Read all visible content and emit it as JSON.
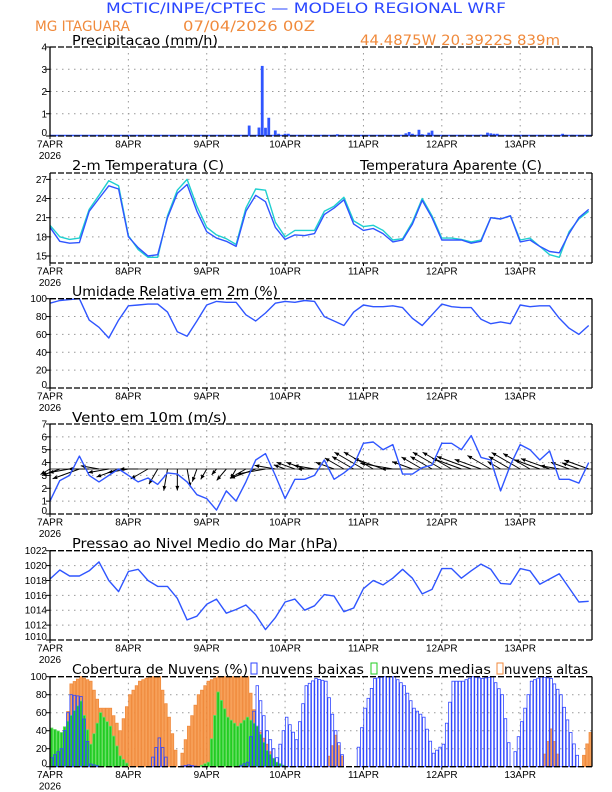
{
  "header": {
    "title": "MCTIC/INPE/CPTEC — MODELO REGIONAL WRF",
    "location": "MG ITAGUARA",
    "run": "07/04/2026 00Z",
    "coords": "44.4875W 20.3922S 839m"
  },
  "colors": {
    "title": "#2a46ff",
    "orange": "#f08a3c",
    "line_blue": "#2f55ff",
    "apparent_cyan": "#1fcfcf",
    "cloud_low": "#2f45ff",
    "cloud_mid": "#22cc22",
    "cloud_high": "#f7a15a"
  },
  "times": [
    "07APR 00Z",
    "07APR 03Z",
    "07APR 06Z",
    "07APR 09Z",
    "07APR 12Z",
    "07APR 15Z",
    "07APR 18Z",
    "07APR 21Z",
    "08APR 00Z",
    "08APR 03Z",
    "08APR 06Z",
    "08APR 09Z",
    "08APR 12Z",
    "08APR 15Z",
    "08APR 18Z",
    "08APR 21Z",
    "09APR 00Z",
    "09APR 03Z",
    "09APR 06Z",
    "09APR 09Z",
    "09APR 12Z",
    "09APR 15Z",
    "09APR 18Z",
    "09APR 21Z",
    "10APR 00Z",
    "10APR 03Z",
    "10APR 06Z",
    "10APR 09Z",
    "10APR 12Z",
    "10APR 15Z",
    "10APR 18Z",
    "10APR 21Z",
    "11APR 00Z",
    "11APR 03Z",
    "11APR 06Z",
    "11APR 09Z",
    "11APR 12Z",
    "11APR 15Z",
    "11APR 18Z",
    "11APR 21Z",
    "12APR 00Z",
    "12APR 03Z",
    "12APR 06Z",
    "12APR 09Z",
    "12APR 12Z",
    "12APR 15Z",
    "12APR 18Z",
    "12APR 21Z",
    "13APR 00Z",
    "13APR 03Z",
    "13APR 06Z",
    "13APR 09Z",
    "13APR 12Z",
    "13APR 15Z",
    "13APR 18Z",
    "13APR 21Z"
  ],
  "x_axis": {
    "tick_labels": [
      "7APR",
      "8APR",
      "9APR",
      "10APR",
      "11APR",
      "12APR",
      "13APR"
    ],
    "year_label": "2026",
    "range": [
      "07APR 00Z",
      "13APR 22Z"
    ]
  },
  "chart_data": [
    {
      "type": "bar",
      "title": "Precipitacao (mm/h)",
      "ylim": [
        0,
        4
      ],
      "yticks": [
        "0",
        "1",
        "2",
        "3",
        "4"
      ],
      "grid": true,
      "events": [
        {
          "t": "09APR 13Z",
          "v": 0.47
        },
        {
          "t": "09APR 16Z",
          "v": 0.38
        },
        {
          "t": "09APR 17Z",
          "v": 3.15
        },
        {
          "t": "09APR 18Z",
          "v": 0.37
        },
        {
          "t": "09APR 19Z",
          "v": 0.82
        },
        {
          "t": "09APR 21Z",
          "v": 0.25
        },
        {
          "t": "09APR 22Z",
          "v": 0.1
        },
        {
          "t": "10APR 00Z",
          "v": 0.1
        },
        {
          "t": "10APR 01Z",
          "v": 0.1
        },
        {
          "t": "10APR 12Z",
          "v": 0.05
        },
        {
          "t": "10APR 15Z",
          "v": 0.05
        },
        {
          "t": "10APR 16Z",
          "v": 0.08
        },
        {
          "t": "11APR 13Z",
          "v": 0.12
        },
        {
          "t": "11APR 14Z",
          "v": 0.18
        },
        {
          "t": "11APR 15Z",
          "v": 0.1
        },
        {
          "t": "11APR 17Z",
          "v": 0.28
        },
        {
          "t": "11APR 18Z",
          "v": 0.08
        },
        {
          "t": "11APR 20Z",
          "v": 0.15
        },
        {
          "t": "11APR 21Z",
          "v": 0.24
        },
        {
          "t": "12APR 12Z",
          "v": 0.06
        },
        {
          "t": "12APR 14Z",
          "v": 0.15
        },
        {
          "t": "12APR 15Z",
          "v": 0.12
        },
        {
          "t": "12APR 16Z",
          "v": 0.1
        },
        {
          "t": "12APR 17Z",
          "v": 0.1
        },
        {
          "t": "13APR 13Z",
          "v": 0.1
        },
        {
          "t": "13APR 14Z",
          "v": 0.05
        },
        {
          "t": "13APR 16Z",
          "v": 0.05
        }
      ]
    },
    {
      "type": "line",
      "title": "2-m Temperatura (C)",
      "ylim": [
        13.9,
        28
      ],
      "yticks": [
        "15",
        "18",
        "21",
        "24",
        "27"
      ],
      "grid": true,
      "series": [
        {
          "values": [
            19.5,
            17.3,
            17.0,
            17.1,
            22.0,
            24.0,
            26.0,
            25.5,
            18.0,
            16.3,
            15.0,
            15.2,
            21.0,
            24.8,
            26.2,
            22.0,
            18.8,
            17.8,
            17.3,
            16.5,
            22.0,
            24.5,
            23.5,
            19.5,
            17.6,
            18.3,
            18.2,
            18.5,
            21.5,
            22.5,
            23.8,
            20.0,
            19.0,
            19.3,
            18.5,
            17.2,
            17.5,
            20.0,
            23.7,
            21.0,
            17.5,
            17.5,
            17.5,
            17.0,
            17.3,
            21.0,
            20.8,
            21.3,
            17.2,
            17.5,
            16.5,
            15.7,
            15.5,
            18.5,
            21.0,
            22.3
          ]
        },
        {
          "name": "Temperatura Aparente (C)",
          "values": [
            19.8,
            18.0,
            17.6,
            17.8,
            22.3,
            24.5,
            26.8,
            26.0,
            18.2,
            16.0,
            14.8,
            14.8,
            21.3,
            25.3,
            27.0,
            22.8,
            19.5,
            18.3,
            17.7,
            16.8,
            22.5,
            25.5,
            25.3,
            20.3,
            18.0,
            19.0,
            19.0,
            19.0,
            22.0,
            22.8,
            24.2,
            20.5,
            19.6,
            19.8,
            19.0,
            17.5,
            17.7,
            20.3,
            24.0,
            21.3,
            17.8,
            17.8,
            17.6,
            17.2,
            17.5,
            21.0,
            20.8,
            21.3,
            17.5,
            17.8,
            16.5,
            15.2,
            14.8,
            18.8,
            20.8,
            22.0
          ]
        }
      ]
    },
    {
      "type": "line",
      "title": "Umidade Relativa em 2m (%)",
      "ylim": [
        0,
        100
      ],
      "yticks": [
        "0",
        "20",
        "40",
        "60",
        "80",
        "100"
      ],
      "grid": true,
      "series": [
        {
          "values": [
            95,
            98,
            99,
            100,
            76,
            68,
            56,
            76,
            92,
            93,
            94,
            94,
            85,
            63,
            58,
            75,
            93,
            97,
            96,
            96,
            82,
            75,
            84,
            95,
            97,
            96,
            98,
            97,
            80,
            75,
            70,
            85,
            93,
            91,
            91,
            92,
            90,
            78,
            70,
            82,
            94,
            91,
            90,
            90,
            77,
            72,
            74,
            72,
            93,
            91,
            92,
            92,
            78,
            67,
            60,
            70
          ]
        }
      ]
    },
    {
      "type": "line",
      "title": "Vento em 10m (m/s)",
      "ylim": [
        0,
        7
      ],
      "yticks": [
        "0",
        "1",
        "2",
        "3",
        "4",
        "5",
        "6",
        "7"
      ],
      "grid": true,
      "series": [
        {
          "values": [
            1.0,
            2.6,
            3.0,
            4.5,
            3.0,
            2.5,
            3.0,
            3.5,
            3.0,
            2.5,
            2.8,
            2.3,
            3.2,
            3.1,
            2.5,
            1.5,
            1.2,
            0.3,
            1.8,
            1.0,
            2.5,
            4.2,
            4.7,
            3.0,
            1.2,
            2.7,
            2.7,
            3.0,
            4.2,
            2.7,
            3.2,
            3.8,
            5.5,
            5.6,
            5.0,
            5.4,
            3.1,
            3.1,
            3.6,
            3.8,
            5.5,
            5.5,
            5.0,
            6.1,
            4.4,
            4.2,
            1.8,
            3.8,
            5.4,
            5.0,
            4.2,
            4.9,
            2.7,
            2.7,
            2.4,
            4.0
          ]
        }
      ],
      "wind_direction_from_deg": [
        60,
        70,
        80,
        70,
        90,
        100,
        80,
        70,
        80,
        90,
        60,
        30,
        10,
        0,
        350,
        20,
        30,
        40,
        40,
        30,
        60,
        70,
        80,
        100,
        110,
        110,
        110,
        100,
        90,
        110,
        120,
        120,
        120,
        120,
        110,
        100,
        90,
        110,
        120,
        120,
        120,
        120,
        110,
        110,
        110,
        120,
        120,
        120,
        120,
        120,
        110,
        110,
        100,
        110,
        110,
        110
      ]
    },
    {
      "type": "line",
      "title": "Pressao ao Nivel Medio do Mar (hPa)",
      "ylim": [
        1010,
        1022
      ],
      "yticks": [
        "1010",
        "1012",
        "1014",
        "1016",
        "1018",
        "1020",
        "1022"
      ],
      "grid": true,
      "series": [
        {
          "values": [
            1018.2,
            1019.4,
            1018.6,
            1018.6,
            1019.3,
            1020.5,
            1018.0,
            1016.5,
            1019.2,
            1019.5,
            1018.0,
            1017.2,
            1017.2,
            1015.6,
            1012.7,
            1013.2,
            1014.8,
            1015.5,
            1013.6,
            1014.1,
            1014.7,
            1013.4,
            1011.4,
            1013.0,
            1015.1,
            1015.5,
            1014.0,
            1014.6,
            1016.1,
            1015.9,
            1013.8,
            1014.3,
            1016.9,
            1018.0,
            1017.4,
            1018.3,
            1019.5,
            1018.3,
            1016.2,
            1016.8,
            1019.6,
            1019.6,
            1018.3,
            1019.3,
            1020.2,
            1019.5,
            1017.6,
            1017.5,
            1019.6,
            1019.3,
            1017.5,
            1018.2,
            1018.9,
            1017.0,
            1015.1,
            1015.2
          ]
        }
      ]
    },
    {
      "type": "bar",
      "title": "Cobertura de Nuvens (%)",
      "ylim": [
        0,
        100
      ],
      "yticks": [
        "0",
        "20",
        "40",
        "60",
        "80",
        "100"
      ],
      "grid": true,
      "series": [
        {
          "name": "nuvens baixas",
          "values": [
            10,
            20,
            80,
            78,
            3,
            0,
            0,
            0,
            0,
            0,
            0,
            32,
            0,
            0,
            2,
            0,
            0,
            0,
            0,
            0,
            5,
            90,
            40,
            10,
            55,
            30,
            90,
            98,
            95,
            40,
            0,
            0,
            65,
            98,
            100,
            100,
            90,
            65,
            55,
            15,
            25,
            95,
            95,
            100,
            98,
            100,
            80,
            0,
            50,
            95,
            100,
            98,
            80,
            38,
            0,
            0
          ]
        },
        {
          "name": "nuvens medias",
          "values": [
            43,
            38,
            57,
            73,
            25,
            60,
            45,
            12,
            0,
            0,
            0,
            0,
            0,
            0,
            0,
            0,
            5,
            83,
            55,
            45,
            55,
            45,
            18,
            5,
            0,
            0,
            0,
            0,
            0,
            0,
            0,
            0,
            0,
            0,
            0,
            0,
            0,
            0,
            0,
            0,
            0,
            0,
            0,
            0,
            0,
            0,
            0,
            0,
            0,
            0,
            0,
            0,
            0,
            0,
            0,
            0
          ]
        },
        {
          "name": "nuvens altas",
          "values": [
            0,
            0,
            92,
            100,
            95,
            65,
            65,
            40,
            80,
            95,
            100,
            100,
            55,
            0,
            45,
            80,
            95,
            100,
            100,
            100,
            100,
            45,
            25,
            0,
            0,
            0,
            0,
            0,
            0,
            35,
            0,
            0,
            0,
            0,
            0,
            0,
            0,
            0,
            0,
            0,
            0,
            0,
            0,
            0,
            0,
            0,
            0,
            0,
            0,
            0,
            0,
            42,
            0,
            0,
            0,
            38
          ]
        }
      ]
    }
  ]
}
